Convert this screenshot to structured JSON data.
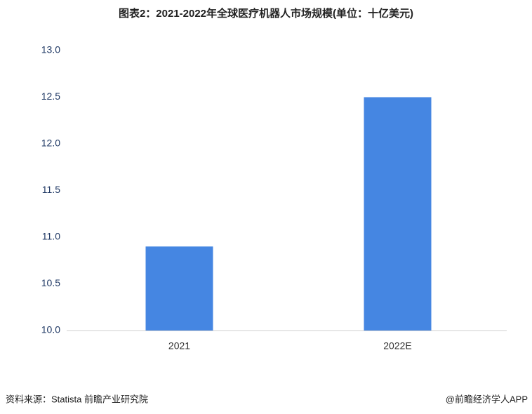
{
  "chart_data": {
    "type": "bar",
    "title": "图表2：2021-2022年全球医疗机器人市场规模(单位：十亿美元)",
    "categories": [
      "2021",
      "2022E"
    ],
    "values": [
      10.9,
      12.5
    ],
    "color": "#4586e2",
    "ylim": [
      10,
      13
    ],
    "yticks": [
      {
        "value": 10,
        "label": "10.0"
      },
      10.5,
      {
        "value": 11,
        "label": "11.0"
      },
      11.5,
      {
        "value": 12,
        "label": "12.0"
      },
      12.5,
      {
        "value": 13,
        "label": "13.0"
      }
    ],
    "grid": false,
    "source": "资料来源：Statista 前瞻产业研究院",
    "credit": "@前瞻经济学人APP"
  }
}
